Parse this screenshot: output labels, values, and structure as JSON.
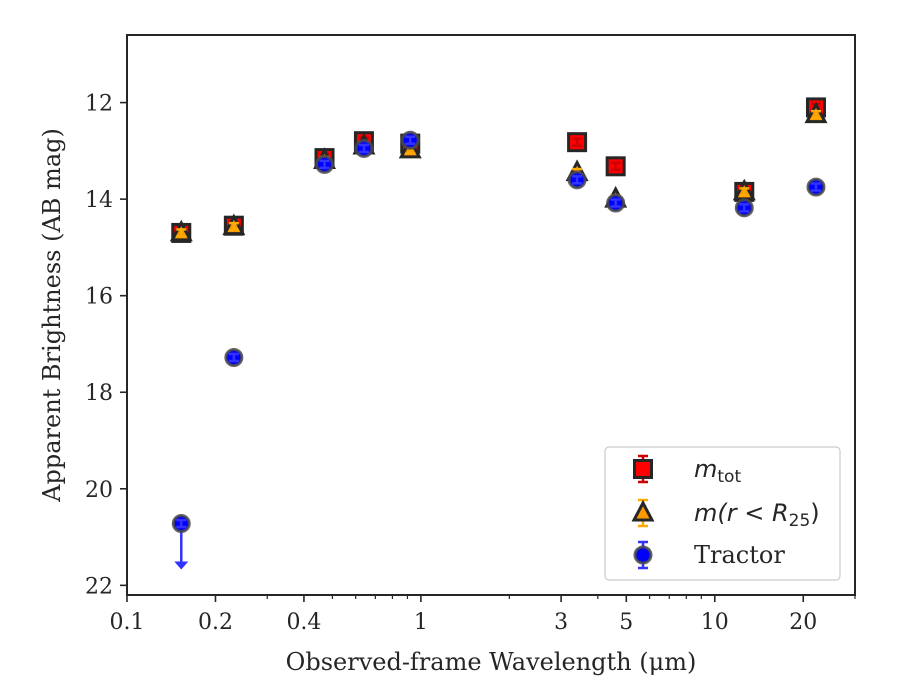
{
  "chart_data": {
    "type": "scatter",
    "xlabel": "Observed-frame Wavelength (μm)",
    "ylabel": "Apparent Brightness (AB mag)",
    "x_scale": "log",
    "y_inverted": true,
    "xlim": [
      0.1,
      30
    ],
    "ylim": [
      22.2,
      10.6
    ],
    "x_ticks": [
      0.1,
      0.2,
      0.4,
      1,
      3,
      5,
      10,
      20
    ],
    "x_tick_labels": [
      "0.1",
      "0.2",
      "0.4",
      "1",
      "3",
      "5",
      "10",
      "20"
    ],
    "y_ticks": [
      12,
      14,
      16,
      18,
      20,
      22
    ],
    "y_tick_labels": [
      "12",
      "14",
      "16",
      "18",
      "20",
      "22"
    ],
    "grid": false,
    "legend_position": "lower-right",
    "series": [
      {
        "name": "m_tot",
        "label_main": "m",
        "label_sub": "tot",
        "marker": "square",
        "color": "#ff0000",
        "edge_color": "#262626",
        "error_color": "#cc0000",
        "points": [
          {
            "x": 0.153,
            "y": 14.7
          },
          {
            "x": 0.231,
            "y": 14.55
          },
          {
            "x": 0.47,
            "y": 13.15
          },
          {
            "x": 0.64,
            "y": 12.8
          },
          {
            "x": 0.92,
            "y": 12.85
          },
          {
            "x": 3.4,
            "y": 12.82
          },
          {
            "x": 4.6,
            "y": 13.32
          },
          {
            "x": 12.6,
            "y": 13.85
          },
          {
            "x": 22.1,
            "y": 12.1
          }
        ]
      },
      {
        "name": "m(r < R_25)",
        "label_main": "m(r < R",
        "label_sub": "25",
        "label_end": ")",
        "marker": "triangle",
        "color": "#ff9900",
        "edge_color": "#262626",
        "error_color": "#ffaa00",
        "points": [
          {
            "x": 0.153,
            "y": 14.7
          },
          {
            "x": 0.231,
            "y": 14.57
          },
          {
            "x": 0.47,
            "y": 13.2
          },
          {
            "x": 0.64,
            "y": 12.9
          },
          {
            "x": 0.92,
            "y": 12.98
          },
          {
            "x": 3.4,
            "y": 13.45
          },
          {
            "x": 4.6,
            "y": 14.0
          },
          {
            "x": 12.6,
            "y": 13.85
          },
          {
            "x": 22.1,
            "y": 12.25
          }
        ]
      },
      {
        "name": "Tractor",
        "label_main": "Tractor",
        "marker": "circle",
        "color": "#0000ff",
        "edge_color": "#4a4a4a",
        "error_color": "#3333ff",
        "points": [
          {
            "x": 0.153,
            "y": 20.72,
            "upper_limit": true
          },
          {
            "x": 0.231,
            "y": 17.28
          },
          {
            "x": 0.47,
            "y": 13.28
          },
          {
            "x": 0.64,
            "y": 12.95
          },
          {
            "x": 0.92,
            "y": 12.78
          },
          {
            "x": 3.4,
            "y": 13.6
          },
          {
            "x": 4.6,
            "y": 14.08
          },
          {
            "x": 12.6,
            "y": 14.18
          },
          {
            "x": 22.1,
            "y": 13.75
          }
        ]
      }
    ]
  }
}
